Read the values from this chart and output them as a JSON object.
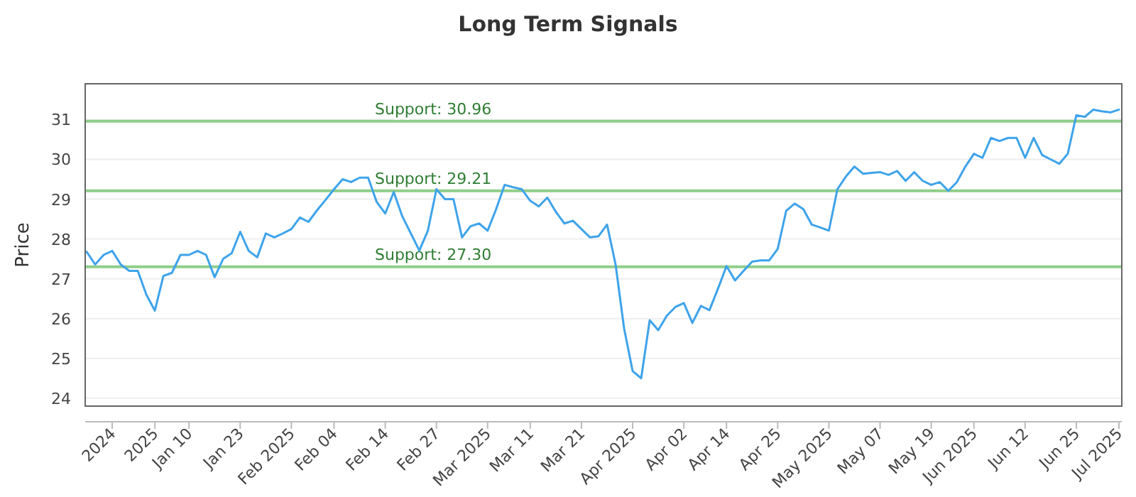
{
  "chart_data": {
    "type": "line",
    "title": "Long Term Signals",
    "ylabel": "Price",
    "categories": [
      null,
      null,
      null,
      "2024",
      null,
      null,
      null,
      null,
      "2025",
      null,
      null,
      null,
      "Jan 10",
      null,
      null,
      null,
      null,
      null,
      "Jan 23",
      null,
      null,
      null,
      null,
      null,
      "Feb 2025",
      null,
      null,
      null,
      null,
      "Feb 04",
      null,
      null,
      null,
      null,
      null,
      "Feb 14",
      null,
      null,
      null,
      null,
      null,
      "Feb 27",
      null,
      null,
      null,
      null,
      null,
      "Mar 2025",
      null,
      null,
      null,
      null,
      "Mar 11",
      null,
      null,
      null,
      null,
      null,
      "Mar 21",
      null,
      null,
      null,
      null,
      null,
      "Apr 2025",
      null,
      null,
      null,
      null,
      null,
      "Apr 02",
      null,
      null,
      null,
      null,
      "Apr 14",
      null,
      null,
      null,
      null,
      null,
      "Apr 25",
      null,
      null,
      null,
      null,
      null,
      "May 2025",
      null,
      null,
      null,
      null,
      null,
      "May 07",
      null,
      null,
      null,
      null,
      null,
      "May 19",
      null,
      null,
      null,
      null,
      "Jun 2025",
      null,
      null,
      null,
      null,
      null,
      "Jun 12",
      null,
      null,
      null,
      null,
      null,
      "Jun 25",
      null,
      null,
      null,
      null,
      "Jul 2025"
    ],
    "series": [
      {
        "color": "#3ea3ea",
        "values": [
          27.68,
          27.36,
          27.6,
          27.7,
          27.36,
          27.2,
          27.2,
          26.6,
          26.2,
          27.07,
          27.15,
          27.6,
          27.6,
          27.7,
          27.6,
          27.04,
          27.5,
          27.64,
          28.18,
          27.7,
          27.54,
          28.14,
          28.04,
          28.14,
          28.25,
          28.54,
          28.43,
          28.72,
          28.98,
          29.25,
          29.5,
          29.43,
          29.54,
          29.54,
          28.93,
          28.64,
          29.18,
          28.57,
          28.14,
          27.71,
          28.21,
          29.25,
          29.0,
          29.0,
          28.04,
          28.32,
          28.39,
          28.21,
          28.75,
          29.36,
          29.3,
          29.25,
          28.96,
          28.82,
          29.04,
          28.68,
          28.39,
          28.46,
          28.25,
          28.04,
          28.07,
          28.36,
          27.36,
          25.75,
          24.68,
          24.5,
          25.96,
          25.71,
          26.07,
          26.29,
          26.39,
          25.89,
          26.32,
          26.21,
          26.75,
          27.32,
          26.96,
          27.2,
          27.43,
          27.46,
          27.46,
          27.75,
          28.71,
          28.89,
          28.75,
          28.36,
          28.29,
          28.21,
          29.25,
          29.57,
          29.82,
          29.64,
          29.66,
          29.68,
          29.61,
          29.71,
          29.46,
          29.68,
          29.46,
          29.36,
          29.43,
          29.21,
          29.43,
          29.82,
          30.14,
          30.04,
          30.54,
          30.46,
          30.54,
          30.54,
          30.04,
          30.54,
          30.11,
          30.0,
          29.89,
          30.14,
          31.11,
          31.07,
          31.25,
          31.21,
          31.18,
          31.25
        ]
      }
    ],
    "ylim": [
      23.8,
      31.9
    ],
    "yticks": [
      24,
      25,
      26,
      27,
      28,
      29,
      30,
      31
    ],
    "grid": "y",
    "marker": "none",
    "line_style": "solid",
    "ref_lines": [
      {
        "axis": "y",
        "value": 30.96,
        "label": "Support: 30.96",
        "color": "#8fce8a"
      },
      {
        "axis": "y",
        "value": 29.21,
        "label": "Support: 29.21",
        "color": "#8fce8a"
      },
      {
        "axis": "y",
        "value": 27.3,
        "label": "Support: 27.30",
        "color": "#8fce8a"
      }
    ]
  }
}
